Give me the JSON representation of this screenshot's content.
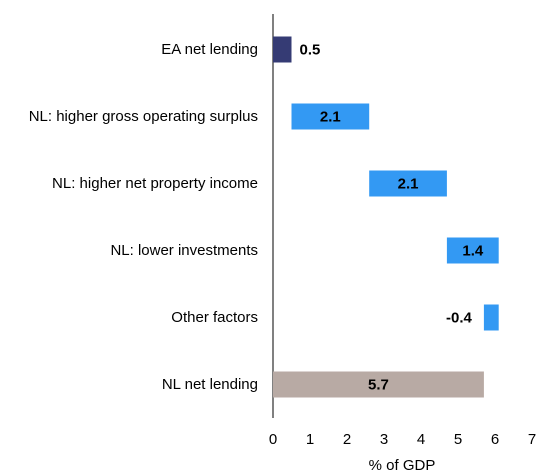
{
  "chart_data": {
    "type": "waterfall",
    "categories": [
      "EA net lending",
      "NL: higher gross operating surplus",
      "NL: higher net property income",
      "NL: lower investments",
      "Other factors",
      "NL net lending"
    ],
    "values": [
      0.5,
      2.1,
      2.1,
      1.4,
      -0.4,
      5.7
    ],
    "colors": [
      "#353b74",
      "#3399f3",
      "#3399f3",
      "#3399f3",
      "#3399f3",
      "#b8aaa4"
    ],
    "xlabel": "% of GDP",
    "xlim": [
      0,
      7
    ],
    "xticks": [
      0,
      1,
      2,
      3,
      4,
      5,
      6,
      7
    ]
  }
}
